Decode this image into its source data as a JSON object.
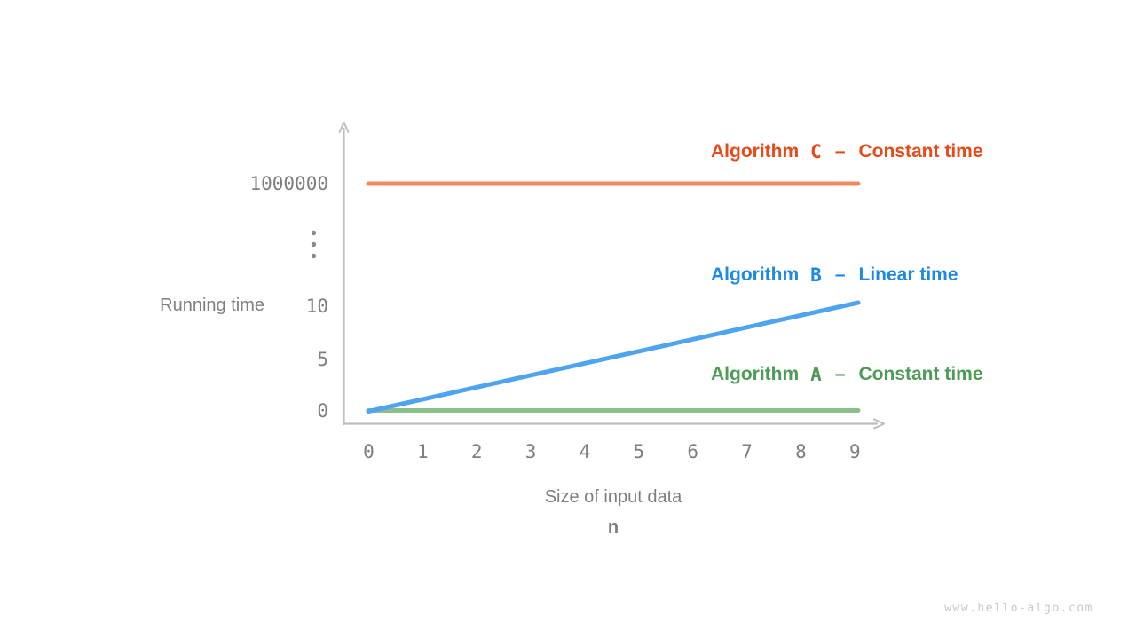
{
  "watermark": "www.hello-algo.com",
  "colors": {
    "axis": "#bdbdbd",
    "tick_text": "#7e7e7e",
    "axis_break_dots": "#8a8a8a",
    "watermark_text": "#c9c9c9"
  },
  "chart_data": {
    "type": "line",
    "title": "",
    "xlabel": "Size of input data",
    "x_variable": "n",
    "ylabel": "Running time",
    "x": [
      0,
      1,
      2,
      3,
      4,
      5,
      6,
      7,
      8,
      9
    ],
    "x_tick_labels": [
      "0",
      "1",
      "2",
      "3",
      "4",
      "5",
      "6",
      "7",
      "8",
      "9"
    ],
    "y_tick_labels": [
      "1000000",
      "10",
      "5",
      "0"
    ],
    "y_axis_break": "axis broken between 10 and 1000000, marked with three vertical dots",
    "grid": "off",
    "legend_position": "right of each line, inside plot area",
    "legend_prefix": "Algorithm",
    "legend_dash": "–",
    "series": [
      {
        "name": "Algorithm C",
        "letter": "C",
        "complexity": "Constant time",
        "values": [
          1000000,
          1000000,
          1000000,
          1000000,
          1000000,
          1000000,
          1000000,
          1000000,
          1000000,
          1000000
        ],
        "line_color": "#f2895e",
        "text_color": "#e64a19"
      },
      {
        "name": "Algorithm B",
        "letter": "B",
        "complexity": "Linear time",
        "values": [
          0,
          1.1,
          2.2,
          3.3,
          4.4,
          5.6,
          6.7,
          7.8,
          8.9,
          10
        ],
        "line_color": "#4fa4f0",
        "text_color": "#1e88e5"
      },
      {
        "name": "Algorithm A",
        "letter": "A",
        "complexity": "Constant time",
        "values": [
          1,
          1,
          1,
          1,
          1,
          1,
          1,
          1,
          1,
          1
        ],
        "line_color": "#8cc08a",
        "text_color": "#4e9b57"
      }
    ]
  }
}
